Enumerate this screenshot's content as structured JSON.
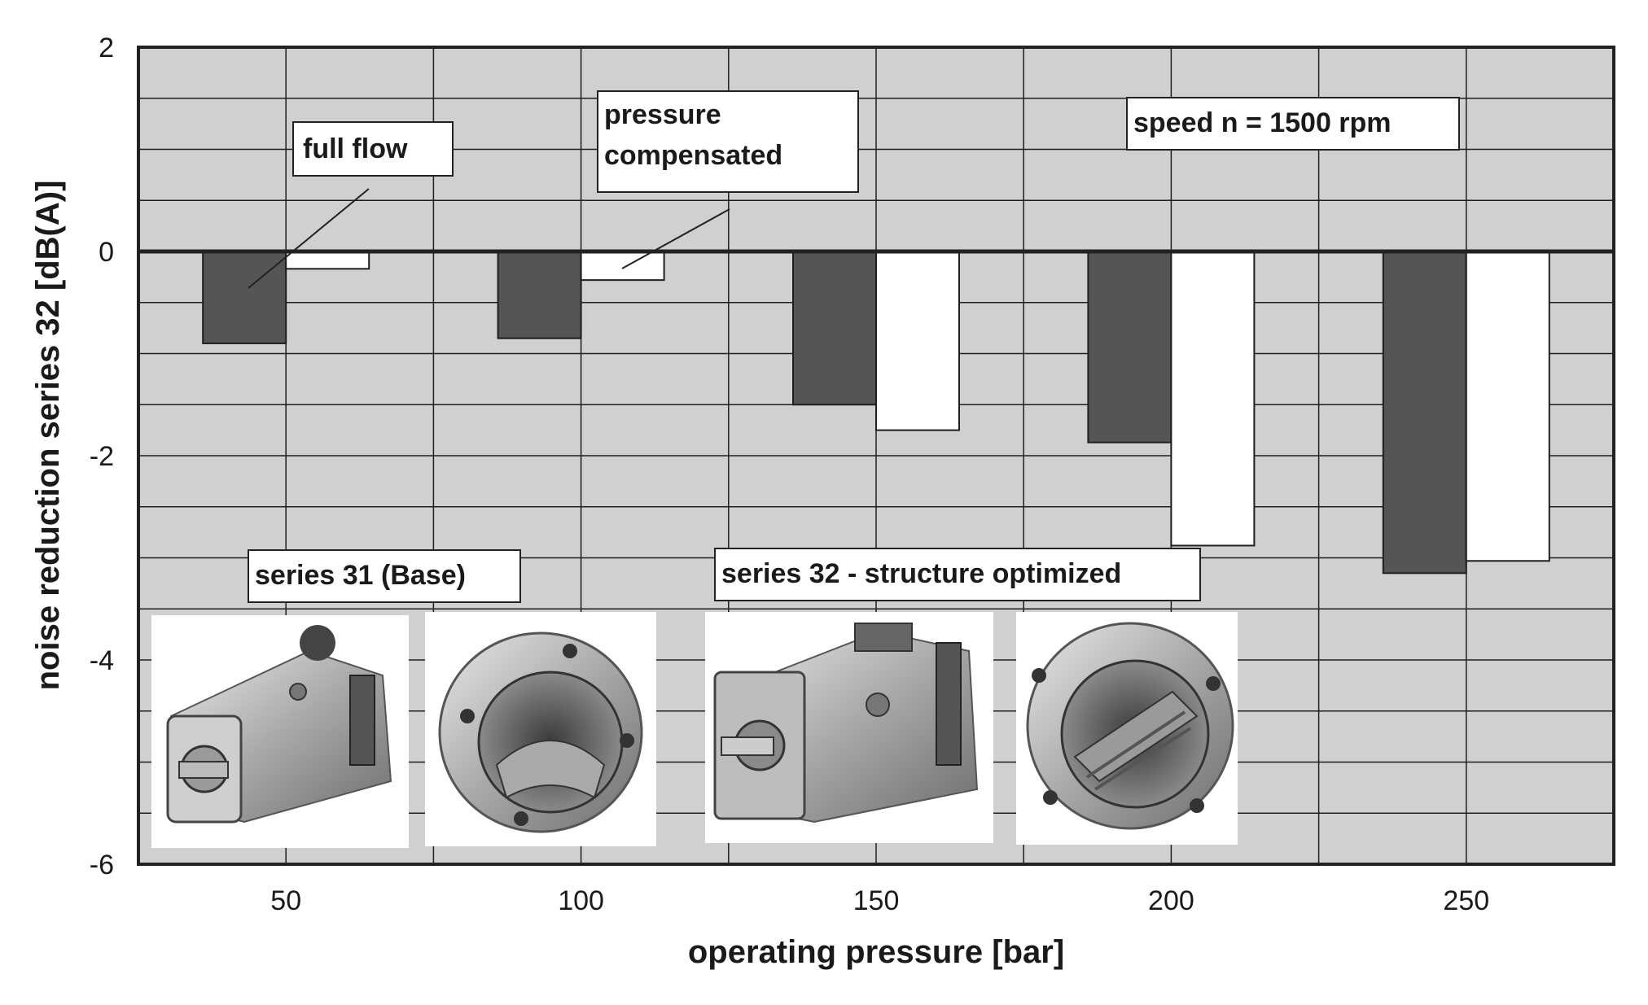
{
  "chart_data": {
    "type": "bar",
    "xlabel": "operating pressure [bar]",
    "ylabel": "noise reduction series 32 [dB(A)]",
    "categories": [
      "50",
      "100",
      "150",
      "200",
      "250"
    ],
    "ylim": [
      -6,
      2
    ],
    "yticks": [
      "2",
      "0",
      "-2",
      "-4",
      "-6"
    ],
    "grid": true,
    "series": [
      {
        "name": "full flow",
        "values": [
          -0.9,
          -0.85,
          -1.5,
          -1.87,
          -3.15
        ],
        "color": "#555555"
      },
      {
        "name": "pressure compensated",
        "values": [
          -0.17,
          -0.28,
          -1.75,
          -2.88,
          -3.03
        ],
        "color": "#ffffff"
      }
    ],
    "annotations": {
      "speed": "speed  n = 1500 rpm",
      "pressure_line1": "pressure",
      "pressure_line2": "compensated",
      "series31": "series 31 (Base)",
      "series32": "series 32 - structure optimized"
    },
    "photos": [
      "pump-series31-photo",
      "housing-series31-photo",
      "pump-series32-photo",
      "housing-series32-photo"
    ]
  }
}
